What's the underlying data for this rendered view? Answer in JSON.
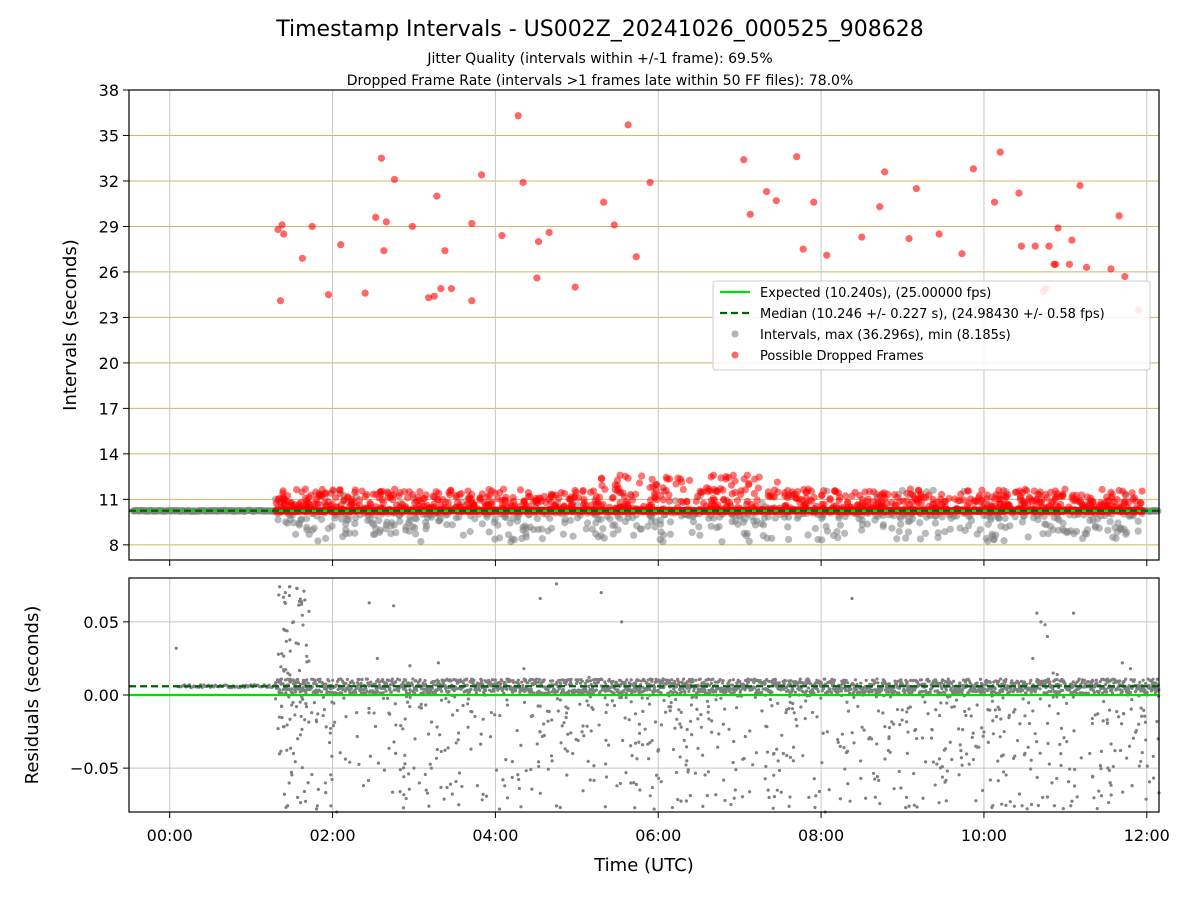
{
  "chart_data": [
    {
      "panel": "intervals",
      "type": "scatter",
      "title": "Timestamp Intervals - US002Z_20241026_000525_908628",
      "subtitle_lines": [
        "Jitter Quality (intervals within +/-1 frame): 69.5%",
        "Dropped Frame Rate (intervals >1 frames late within 50 FF files): 78.0%"
      ],
      "ylabel": "Intervals (seconds)",
      "xlabel": "",
      "xlim_hours": [
        -0.5,
        12.15
      ],
      "ylim": [
        7,
        38
      ],
      "yticks": [
        8,
        11,
        14,
        17,
        20,
        23,
        26,
        29,
        32,
        35,
        38
      ],
      "ytick_labels": [
        "8",
        "11",
        "14",
        "17",
        "20",
        "23",
        "26",
        "29",
        "32",
        "35",
        "38"
      ],
      "grid": true,
      "horizontal_grid_color": "#d4b466",
      "vertical_grid_color": "#c8c8c8",
      "expected_interval": 10.24,
      "median_interval": 10.246,
      "legend_location": "center-right",
      "legend": [
        {
          "label": "Expected (10.240s), (25.00000 fps)",
          "style": "solid-line",
          "color": "#00e000"
        },
        {
          "label": "Median (10.246 +/- 0.227 s), (24.98430 +/- 0.58 fps)",
          "style": "dashed-line",
          "color": "#006400"
        },
        {
          "label": "Intervals, max (36.296s), min (8.185s)",
          "style": "marker",
          "color": "#808080"
        },
        {
          "label": "Possible Dropped Frames",
          "style": "marker",
          "color": "#ff0000"
        }
      ],
      "interval_band": {
        "color": "#808080",
        "segments": [
          {
            "x_start": -0.5,
            "x_end": 1.3,
            "y": 10.24
          },
          {
            "x_start": 1.3,
            "x_end": 12.15,
            "y": 10.24
          }
        ],
        "scatter_below_min": 8.2,
        "scatter_below_max": 10.1
      },
      "dropped_frames_high": [
        {
          "x": 1.33,
          "y": 28.8
        },
        {
          "x": 1.36,
          "y": 24.1
        },
        {
          "x": 1.38,
          "y": 29.1
        },
        {
          "x": 1.4,
          "y": 28.5
        },
        {
          "x": 1.63,
          "y": 26.9
        },
        {
          "x": 1.75,
          "y": 29.0
        },
        {
          "x": 1.95,
          "y": 24.5
        },
        {
          "x": 2.1,
          "y": 27.8
        },
        {
          "x": 2.4,
          "y": 24.6
        },
        {
          "x": 2.53,
          "y": 29.6
        },
        {
          "x": 2.6,
          "y": 33.5
        },
        {
          "x": 2.63,
          "y": 27.4
        },
        {
          "x": 2.66,
          "y": 29.3
        },
        {
          "x": 2.76,
          "y": 32.1
        },
        {
          "x": 2.98,
          "y": 29.0
        },
        {
          "x": 3.18,
          "y": 24.3
        },
        {
          "x": 3.25,
          "y": 24.4
        },
        {
          "x": 3.28,
          "y": 31.0
        },
        {
          "x": 3.33,
          "y": 24.9
        },
        {
          "x": 3.38,
          "y": 27.4
        },
        {
          "x": 3.46,
          "y": 24.9
        },
        {
          "x": 3.71,
          "y": 29.2
        },
        {
          "x": 3.71,
          "y": 24.1
        },
        {
          "x": 3.83,
          "y": 32.4
        },
        {
          "x": 4.08,
          "y": 28.4
        },
        {
          "x": 4.28,
          "y": 36.3
        },
        {
          "x": 4.34,
          "y": 31.9
        },
        {
          "x": 4.51,
          "y": 25.6
        },
        {
          "x": 4.53,
          "y": 28.0
        },
        {
          "x": 4.66,
          "y": 28.6
        },
        {
          "x": 4.98,
          "y": 25.0
        },
        {
          "x": 5.33,
          "y": 30.6
        },
        {
          "x": 5.46,
          "y": 29.1
        },
        {
          "x": 5.63,
          "y": 35.7
        },
        {
          "x": 5.73,
          "y": 27.0
        },
        {
          "x": 5.9,
          "y": 31.9
        },
        {
          "x": 7.05,
          "y": 33.4
        },
        {
          "x": 7.13,
          "y": 29.8
        },
        {
          "x": 7.33,
          "y": 31.3
        },
        {
          "x": 7.45,
          "y": 30.7
        },
        {
          "x": 7.7,
          "y": 33.6
        },
        {
          "x": 7.78,
          "y": 27.5
        },
        {
          "x": 7.91,
          "y": 30.6
        },
        {
          "x": 8.07,
          "y": 27.1
        },
        {
          "x": 8.5,
          "y": 28.3
        },
        {
          "x": 8.72,
          "y": 30.3
        },
        {
          "x": 8.78,
          "y": 32.6
        },
        {
          "x": 9.08,
          "y": 28.2
        },
        {
          "x": 9.17,
          "y": 31.5
        },
        {
          "x": 9.45,
          "y": 28.5
        },
        {
          "x": 9.73,
          "y": 27.2
        },
        {
          "x": 9.87,
          "y": 32.8
        },
        {
          "x": 10.13,
          "y": 30.6
        },
        {
          "x": 10.2,
          "y": 33.9
        },
        {
          "x": 10.43,
          "y": 31.2
        },
        {
          "x": 10.46,
          "y": 27.7
        },
        {
          "x": 10.63,
          "y": 27.7
        },
        {
          "x": 10.73,
          "y": 24.7
        },
        {
          "x": 10.76,
          "y": 24.9
        },
        {
          "x": 10.8,
          "y": 27.7
        },
        {
          "x": 10.86,
          "y": 26.5
        },
        {
          "x": 10.88,
          "y": 26.5
        },
        {
          "x": 10.91,
          "y": 28.9
        },
        {
          "x": 11.05,
          "y": 26.5
        },
        {
          "x": 11.08,
          "y": 28.1
        },
        {
          "x": 11.18,
          "y": 31.7
        },
        {
          "x": 11.26,
          "y": 26.3
        },
        {
          "x": 11.56,
          "y": 26.2
        },
        {
          "x": 11.66,
          "y": 29.7
        },
        {
          "x": 11.73,
          "y": 25.7
        },
        {
          "x": 11.9,
          "y": 23.5
        }
      ],
      "dropped_frames_band": {
        "color": "#ff0000",
        "x_start": 1.3,
        "x_end": 11.95,
        "y_min": 10.24,
        "y_max": 12.6,
        "peak_region_hours": [
          5.3,
          7.5
        ]
      }
    },
    {
      "panel": "residuals",
      "type": "scatter",
      "ylabel": "Residuals (seconds)",
      "xlabel": "Time (UTC)",
      "xlim_hours": [
        -0.5,
        12.15
      ],
      "ylim": [
        -0.08,
        0.08
      ],
      "yticks": [
        -0.05,
        0.0,
        0.05
      ],
      "ytick_labels": [
        "−0.05",
        "0.00",
        "0.05"
      ],
      "xticks_hours": [
        0,
        2,
        4,
        6,
        8,
        10,
        12
      ],
      "xtick_labels": [
        "00:00",
        "02:00",
        "04:00",
        "06:00",
        "08:00",
        "10:00",
        "12:00"
      ],
      "grid": true,
      "grid_color": "#c8c8c8",
      "expected_residual": 0.0,
      "median_residual": 0.006,
      "points_color": "#808080",
      "points": [
        {
          "x": 0.08,
          "y": 0.032
        },
        {
          "x": 1.35,
          "y": 0.074
        },
        {
          "x": 1.42,
          "y": 0.07
        },
        {
          "x": 1.47,
          "y": 0.068
        },
        {
          "x": 1.52,
          "y": 0.05
        },
        {
          "x": 1.56,
          "y": 0.073
        },
        {
          "x": 1.62,
          "y": 0.062
        },
        {
          "x": 1.66,
          "y": 0.065
        },
        {
          "x": 1.4,
          "y": 0.045
        },
        {
          "x": 1.48,
          "y": 0.03
        },
        {
          "x": 1.58,
          "y": 0.035
        },
        {
          "x": 1.45,
          "y": 0.015
        },
        {
          "x": 1.52,
          "y": -0.04
        },
        {
          "x": 1.57,
          "y": -0.07
        },
        {
          "x": 1.7,
          "y": -0.06
        },
        {
          "x": 1.9,
          "y": -0.01
        },
        {
          "x": 2.05,
          "y": -0.08
        },
        {
          "x": 2.45,
          "y": 0.063
        },
        {
          "x": 2.55,
          "y": 0.025
        },
        {
          "x": 2.75,
          "y": 0.061
        },
        {
          "x": 2.95,
          "y": 0.02
        },
        {
          "x": 3.0,
          "y": -0.05
        },
        {
          "x": 3.15,
          "y": -0.065
        },
        {
          "x": 3.3,
          "y": 0.022
        },
        {
          "x": 3.55,
          "y": -0.075
        },
        {
          "x": 3.95,
          "y": -0.012
        },
        {
          "x": 4.05,
          "y": -0.078
        },
        {
          "x": 4.35,
          "y": 0.018
        },
        {
          "x": 4.55,
          "y": 0.066
        },
        {
          "x": 4.75,
          "y": 0.076
        },
        {
          "x": 4.95,
          "y": -0.04
        },
        {
          "x": 5.15,
          "y": 0.012
        },
        {
          "x": 5.3,
          "y": 0.07
        },
        {
          "x": 5.55,
          "y": 0.05
        },
        {
          "x": 5.7,
          "y": -0.06
        },
        {
          "x": 5.95,
          "y": -0.078
        },
        {
          "x": 6.35,
          "y": -0.045
        },
        {
          "x": 6.8,
          "y": -0.02
        },
        {
          "x": 7.35,
          "y": -0.065
        },
        {
          "x": 7.85,
          "y": -0.07
        },
        {
          "x": 8.05,
          "y": -0.08
        },
        {
          "x": 8.38,
          "y": 0.066
        },
        {
          "x": 8.62,
          "y": -0.03
        },
        {
          "x": 9.05,
          "y": -0.07
        },
        {
          "x": 9.55,
          "y": -0.052
        },
        {
          "x": 9.9,
          "y": -0.035
        },
        {
          "x": 10.38,
          "y": -0.01
        },
        {
          "x": 10.6,
          "y": 0.025
        },
        {
          "x": 10.65,
          "y": 0.056
        },
        {
          "x": 10.7,
          "y": 0.05
        },
        {
          "x": 10.75,
          "y": 0.048
        },
        {
          "x": 10.78,
          "y": 0.04
        },
        {
          "x": 10.85,
          "y": 0.015
        },
        {
          "x": 10.9,
          "y": 0.014
        },
        {
          "x": 11.1,
          "y": 0.056
        },
        {
          "x": 11.3,
          "y": -0.04
        },
        {
          "x": 11.55,
          "y": -0.06
        },
        {
          "x": 11.7,
          "y": 0.022
        },
        {
          "x": 11.8,
          "y": 0.018
        },
        {
          "x": 11.9,
          "y": -0.02
        }
      ],
      "dense_band": {
        "x_start": 1.3,
        "x_end": 12.15,
        "y_center": 0.006,
        "y_spread": 0.005
      },
      "scattered_negative": {
        "x_start": 1.3,
        "x_end": 12.15,
        "y_min": -0.078,
        "y_max": 0.0
      }
    }
  ]
}
